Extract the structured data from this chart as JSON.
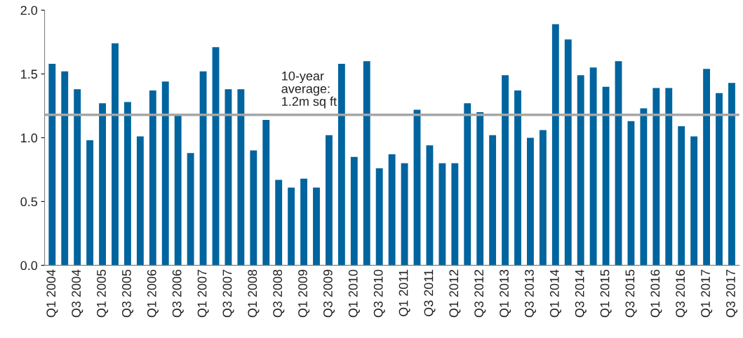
{
  "chart_data": {
    "type": "bar",
    "categories": [
      "Q1 2004",
      null,
      "Q3 2004",
      null,
      "Q1 2005",
      null,
      "Q3 2005",
      null,
      "Q1 2006",
      null,
      "Q3 2006",
      null,
      "Q1 2007",
      null,
      "Q3 2007",
      null,
      "Q1 2008",
      null,
      "Q3 2008",
      null,
      "Q1 2009",
      null,
      "Q3 2009",
      null,
      "Q1 2010",
      null,
      "Q3 2010",
      null,
      "Q1 2011",
      null,
      "Q3 2011",
      null,
      "Q1 2012",
      null,
      "Q3 2012",
      null,
      "Q1 2013",
      null,
      "Q3 2013",
      null,
      "Q1 2014",
      null,
      "Q3 2014",
      null,
      "Q1 2015",
      null,
      "Q3 2015",
      null,
      "Q1 2016",
      null,
      "Q3 2016",
      null,
      "Q1 2017",
      null,
      "Q3 2017"
    ],
    "values": [
      1.58,
      1.52,
      1.38,
      0.98,
      1.27,
      1.74,
      1.28,
      1.01,
      1.37,
      1.44,
      1.18,
      0.88,
      1.52,
      1.71,
      1.38,
      1.38,
      0.9,
      1.14,
      0.67,
      0.61,
      0.68,
      0.61,
      1.02,
      1.58,
      0.85,
      1.6,
      0.76,
      0.87,
      0.8,
      1.22,
      0.94,
      0.8,
      0.8,
      1.27,
      1.2,
      1.02,
      1.49,
      1.37,
      1.0,
      1.06,
      1.89,
      1.77,
      1.49,
      1.55,
      1.4,
      1.6,
      1.13,
      1.23,
      1.39,
      1.39,
      1.09,
      1.01,
      1.54,
      1.35,
      1.43
    ],
    "color": "#00649e",
    "ylim": [
      0,
      2.0
    ],
    "yticks": [
      {
        "value": 0,
        "label": "0.0"
      },
      {
        "value": 0.5,
        "label": "0.5"
      },
      {
        "value": 1.0,
        "label": "1.0"
      },
      {
        "value": 1.5,
        "label": "1.5"
      },
      {
        "value": 2.0,
        "label": "2.0"
      }
    ],
    "ref_lines": [
      {
        "axis": "y",
        "value": 1.18,
        "label": "10-year\naverage:\n1.2m sq ft",
        "color": "#a6a6a6"
      }
    ],
    "grid": false,
    "legend": false
  }
}
